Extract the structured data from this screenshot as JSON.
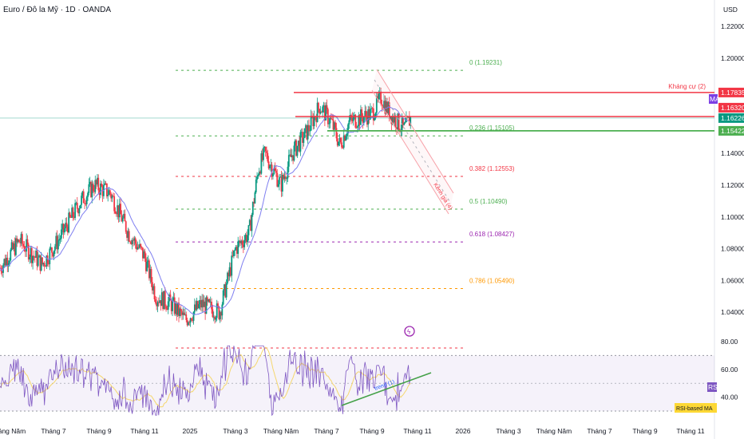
{
  "header": {
    "title": "Euro / Đô la Mỹ · 1D · OANDA",
    "currency": "USD"
  },
  "chart_data": {
    "type": "candlestick",
    "title": "Euro / Đô la Mỹ · 1D · OANDA",
    "y_axis": {
      "ticks": [
        1.22,
        1.2,
        1.14,
        1.12,
        1.1,
        1.08,
        1.06,
        1.04
      ],
      "tick_labels": [
        "1.22000",
        "1.20000",
        "1.14000",
        "1.12000",
        "1.10000",
        "1.08000",
        "1.06000",
        "1.04000"
      ],
      "ylim": [
        1.012,
        1.232
      ]
    },
    "x_axis": {
      "tick_labels": [
        "Tháng Năm",
        "Tháng 7",
        "Tháng 9",
        "Tháng 11",
        "2025",
        "Tháng 3",
        "Tháng Năm",
        "Tháng 7",
        "Tháng 9",
        "Tháng 11",
        "2026",
        "Tháng 3",
        "Tháng Năm",
        "Tháng 7",
        "Tháng 9",
        "Tháng 11"
      ],
      "tick_months": [
        0,
        2,
        4,
        6,
        8,
        10,
        12,
        14,
        16,
        18,
        20,
        22,
        24,
        26,
        28,
        30
      ]
    },
    "price_path_approx": [
      [
        0,
        1.075
      ],
      [
        0.5,
        1.085
      ],
      [
        1.5,
        1.07
      ],
      [
        2.2,
        1.085
      ],
      [
        3.2,
        1.11
      ],
      [
        3.8,
        1.12
      ],
      [
        4.5,
        1.115
      ],
      [
        5.3,
        1.09
      ],
      [
        6,
        1.075
      ],
      [
        6.5,
        1.05
      ],
      [
        7.2,
        1.045
      ],
      [
        7.8,
        1.035
      ],
      [
        8.5,
        1.045
      ],
      [
        9.3,
        1.04
      ],
      [
        10,
        1.08
      ],
      [
        10.6,
        1.09
      ],
      [
        11,
        1.13
      ],
      [
        11.3,
        1.14
      ],
      [
        12,
        1.12
      ],
      [
        12.5,
        1.14
      ],
      [
        13.2,
        1.155
      ],
      [
        13.7,
        1.17
      ],
      [
        14.2,
        1.16
      ],
      [
        14.6,
        1.145
      ],
      [
        15,
        1.16
      ],
      [
        16,
        1.165
      ],
      [
        16.4,
        1.175
      ],
      [
        16.8,
        1.165
      ],
      [
        17.4,
        1.155
      ],
      [
        17.7,
        1.162
      ]
    ],
    "price_tags": [
      {
        "label": "1.17835",
        "value": 1.17835,
        "color": "#f23645",
        "line_label": "Kháng cự (2)"
      },
      {
        "label": "1.16320",
        "value": 1.1632,
        "color": "#f23645"
      },
      {
        "label": "1.16226",
        "value": 1.16226,
        "color": "#089981"
      },
      {
        "label": "1.15422",
        "value": 1.15422,
        "color": "#4caf50"
      }
    ],
    "ma_tag": {
      "label": "MA",
      "color": "#7b3fe4"
    },
    "fib_levels": [
      {
        "label": "0 (1.19231)",
        "value": 1.19231,
        "color": "#4caf50"
      },
      {
        "label": "0.236 (1.15105)",
        "value": 1.15105,
        "color": "#4caf50"
      },
      {
        "label": "0.382 (1.12553)",
        "value": 1.12553,
        "color": "#f23645"
      },
      {
        "label": "0.5 (1.10490)",
        "value": 1.1049,
        "color": "#4caf50"
      },
      {
        "label": "0.618 (1.08427)",
        "value": 1.08427,
        "color": "#9c27b0"
      },
      {
        "label": "0.786 (1.05490)",
        "value": 1.0549,
        "color": "#ff9800"
      },
      {
        "label": "",
        "value": 1.0175,
        "color": "#f23645"
      }
    ],
    "channel_label": "Kênh giá (4)",
    "rsi": {
      "ticks": [
        80,
        60,
        40
      ],
      "tick_labels": [
        "80.00",
        "60.00",
        "40.00"
      ],
      "bands": [
        70,
        50,
        30
      ],
      "tag": "RSI",
      "ma_tag": "RSI-based MA",
      "trend_label": "trend (1)"
    }
  }
}
